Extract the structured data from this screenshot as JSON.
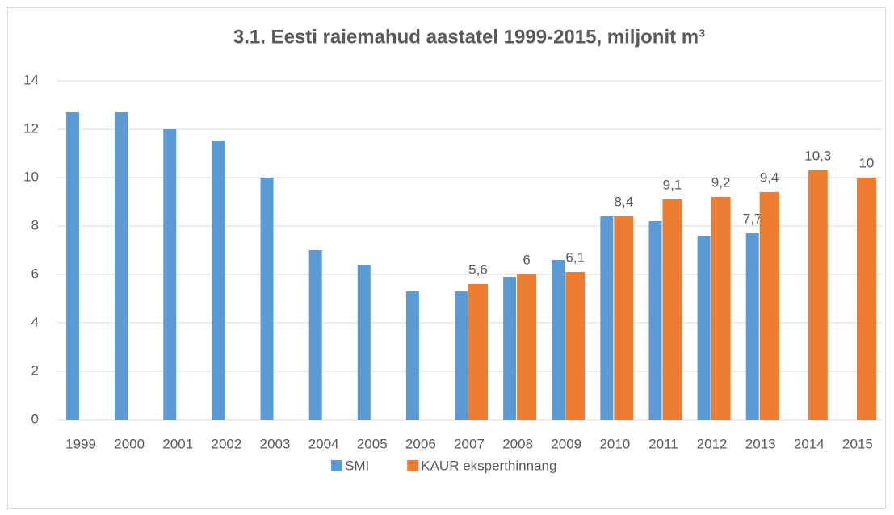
{
  "chart_data": {
    "type": "bar",
    "title": "3.1. Eesti raiemahud aastatel 1999-2015, miljonit m³",
    "categories": [
      "1999",
      "2000",
      "2001",
      "2002",
      "2003",
      "2004",
      "2005",
      "2006",
      "2007",
      "2008",
      "2009",
      "2010",
      "2011",
      "2012",
      "2013",
      "2014",
      "2015"
    ],
    "series": [
      {
        "name": "SMI",
        "color": "#5b9bd5",
        "values": [
          12.7,
          12.7,
          12.0,
          11.5,
          10.0,
          7.0,
          6.4,
          5.3,
          5.3,
          5.9,
          6.6,
          8.4,
          8.2,
          7.6,
          7.7,
          null,
          null
        ],
        "value_labels": [
          null,
          null,
          null,
          null,
          null,
          null,
          null,
          null,
          null,
          null,
          null,
          null,
          null,
          null,
          "7,7",
          null,
          null
        ]
      },
      {
        "name": "KAUR eksperthinnang",
        "color": "#ed7d31",
        "values": [
          null,
          null,
          null,
          null,
          null,
          null,
          null,
          null,
          5.6,
          6,
          6.1,
          8.4,
          9.1,
          9.2,
          9.4,
          10.3,
          10
        ],
        "value_labels": [
          null,
          null,
          null,
          null,
          null,
          null,
          null,
          null,
          "5,6",
          "6",
          "6,1",
          "8,4",
          "9,1",
          "9,2",
          "9,4",
          "10,3",
          "10"
        ]
      }
    ],
    "ylim": [
      0,
      14
    ],
    "yticks": [
      0,
      2,
      4,
      6,
      8,
      10,
      12,
      14
    ],
    "grid": true,
    "legend": "bottom"
  }
}
